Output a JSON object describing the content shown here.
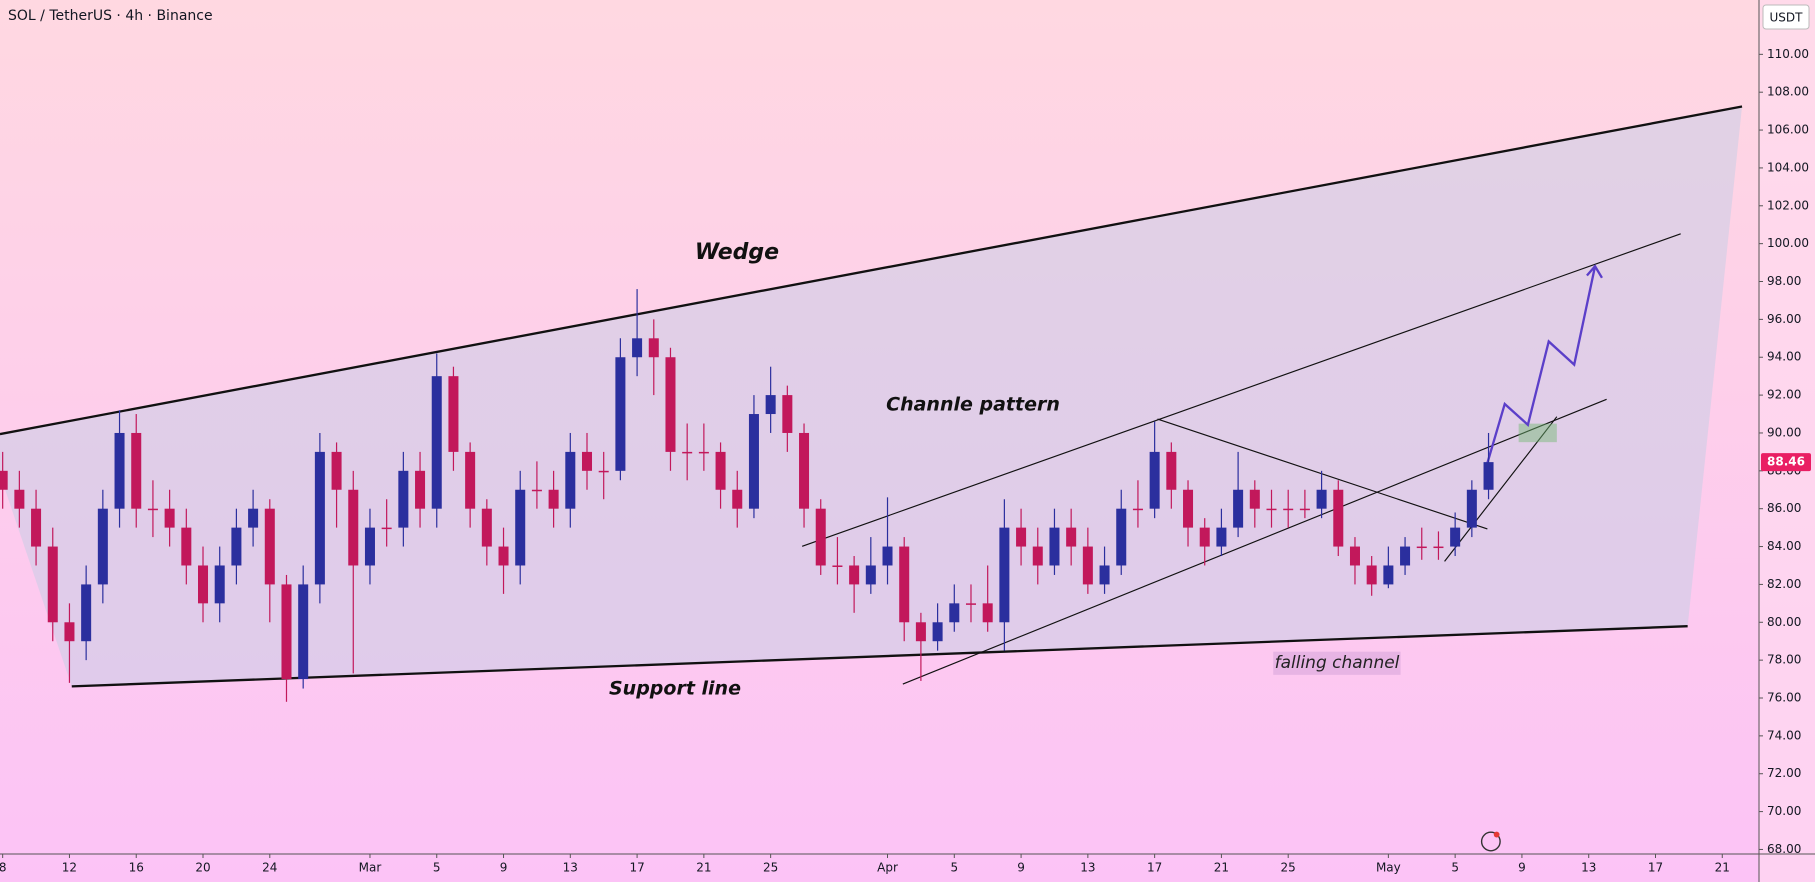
{
  "chart_data": {
    "type": "candlestick",
    "title": "SOL / TetherUS · 4h · Binance",
    "y_axis_unit": "USDT",
    "annotations": [
      "Wedge",
      "Channle pattern",
      "Support line",
      "falling channel"
    ],
    "up_color": "#2b2f9e",
    "down_color": "#c2185b",
    "last_price_color": "#e91e63",
    "xlim": [
      38.84,
      144.2
    ],
    "ylim": [
      67.76,
      112.87
    ],
    "xticks": [
      {
        "value": 39,
        "label": "8"
      },
      {
        "value": 43,
        "label": "12"
      },
      {
        "value": 47,
        "label": "16"
      },
      {
        "value": 51,
        "label": "20"
      },
      {
        "value": 55,
        "label": "24"
      },
      {
        "value": 61,
        "label": "Mar"
      },
      {
        "value": 65,
        "label": "5"
      },
      {
        "value": 69,
        "label": "9"
      },
      {
        "value": 73,
        "label": "13"
      },
      {
        "value": 77,
        "label": "17"
      },
      {
        "value": 81,
        "label": "21"
      },
      {
        "value": 85,
        "label": "25"
      },
      {
        "value": 92,
        "label": "Apr"
      },
      {
        "value": 96,
        "label": "5"
      },
      {
        "value": 100,
        "label": "9"
      },
      {
        "value": 104,
        "label": "13"
      },
      {
        "value": 108,
        "label": "17"
      },
      {
        "value": 112,
        "label": "21"
      },
      {
        "value": 116,
        "label": "25"
      },
      {
        "value": 122,
        "label": "May"
      },
      {
        "value": 126,
        "label": "5"
      },
      {
        "value": 130,
        "label": "9"
      },
      {
        "value": 134,
        "label": "13"
      },
      {
        "value": 138,
        "label": "17"
      },
      {
        "value": 142,
        "label": "21"
      }
    ],
    "yticks": [
      {
        "value": 68,
        "label": "68.00"
      },
      {
        "value": 70,
        "label": "70.00"
      },
      {
        "value": 72,
        "label": "72.00"
      },
      {
        "value": 74,
        "label": "74.00"
      },
      {
        "value": 76,
        "label": "76.00"
      },
      {
        "value": 78,
        "label": "78.00"
      },
      {
        "value": 80,
        "label": "80.00"
      },
      {
        "value": 82,
        "label": "82.00"
      },
      {
        "value": 84,
        "label": "84.00"
      },
      {
        "value": 86,
        "label": "86.00"
      },
      {
        "value": 88,
        "label": "88.00"
      },
      {
        "value": 90,
        "label": "90.00"
      },
      {
        "value": 92,
        "label": "92.00"
      },
      {
        "value": 94,
        "label": "94.00"
      },
      {
        "value": 96,
        "label": "96.00"
      },
      {
        "value": 98,
        "label": "98.00"
      },
      {
        "value": 100,
        "label": "100.00"
      },
      {
        "value": 102,
        "label": "102.00"
      },
      {
        "value": 104,
        "label": "104.00"
      },
      {
        "value": 106,
        "label": "106.00"
      },
      {
        "value": 108,
        "label": "108.00"
      },
      {
        "value": 110,
        "label": "110.00"
      }
    ],
    "x": [
      39,
      40,
      41,
      42,
      43,
      44,
      45,
      46,
      47,
      48,
      49,
      50,
      51,
      52,
      53,
      54,
      55,
      56,
      57,
      58,
      59,
      60,
      61,
      62,
      63,
      64,
      65,
      66,
      67,
      68,
      69,
      70,
      71,
      72,
      73,
      74,
      75,
      76,
      77,
      78,
      79,
      80,
      81,
      82,
      83,
      84,
      85,
      86,
      87,
      88,
      89,
      90,
      91,
      92,
      93,
      94,
      95,
      96,
      97,
      98,
      99,
      100,
      101,
      102,
      103,
      104,
      105,
      106,
      107,
      108,
      109,
      110,
      111,
      112,
      113,
      114,
      115,
      116,
      117,
      118,
      119,
      120,
      121,
      122,
      123,
      124,
      125,
      126,
      127,
      128
    ],
    "open": [
      88,
      87,
      86,
      84,
      80,
      79,
      82,
      86,
      90,
      86,
      86,
      85,
      83,
      81,
      83,
      85,
      86,
      82,
      77,
      82,
      89,
      87,
      83,
      85,
      85,
      88,
      86,
      93,
      89,
      86,
      84,
      83,
      87,
      87,
      86,
      89,
      88,
      88,
      94,
      95,
      94,
      89,
      89,
      89,
      87,
      86,
      91,
      92,
      90,
      86,
      83,
      83,
      82,
      83,
      84,
      80,
      79,
      80,
      81,
      81,
      80,
      85,
      84,
      83,
      85,
      84,
      82,
      83,
      86,
      86,
      89,
      87,
      85,
      84,
      85,
      87,
      86,
      86,
      86,
      86,
      87,
      84,
      83,
      82,
      83,
      84,
      84,
      84,
      85,
      87
    ],
    "high": [
      89,
      88,
      87,
      85,
      81,
      83,
      87,
      91.2,
      91,
      87.5,
      87,
      86,
      84,
      84,
      86,
      87,
      86.5,
      82.5,
      83,
      90,
      89.5,
      88,
      86,
      86.5,
      89,
      89,
      94.2,
      93.5,
      89.5,
      86.5,
      85,
      88,
      88.5,
      88,
      90,
      90,
      89,
      95,
      97.6,
      96,
      94.5,
      90.5,
      90.5,
      89.5,
      88,
      92,
      93.5,
      92.5,
      90.5,
      86.5,
      84.5,
      83.5,
      84.5,
      86.6,
      84.5,
      80.5,
      81,
      82,
      82,
      83,
      86.5,
      86,
      85,
      86,
      86,
      85,
      84,
      87,
      87.5,
      90.6,
      89.5,
      87.5,
      85.5,
      86,
      89,
      87.5,
      87,
      87,
      87,
      88,
      87.5,
      84.5,
      83.5,
      84,
      84.5,
      85,
      84.8,
      85.8,
      87.5,
      90
    ],
    "low": [
      86,
      85,
      83,
      79,
      76.8,
      78,
      81,
      85,
      85,
      84.5,
      84,
      82,
      80,
      80,
      82,
      84,
      80,
      75.8,
      76.5,
      81,
      85,
      77.3,
      82,
      84,
      84,
      85,
      85,
      88,
      85,
      83,
      81.5,
      82,
      86,
      85,
      85,
      87,
      86.5,
      87.5,
      93,
      92,
      88,
      87.5,
      88,
      86,
      85,
      85.5,
      90,
      89,
      85,
      82.5,
      82,
      80.5,
      81.5,
      82,
      79,
      76.9,
      78.5,
      79.5,
      80,
      79.5,
      78.5,
      83,
      82,
      82.5,
      83,
      81.5,
      81.5,
      82.5,
      85,
      85.5,
      86,
      84,
      83,
      83.5,
      84.5,
      85,
      85,
      85,
      85.5,
      85.5,
      83.5,
      82,
      81.4,
      81.8,
      82.5,
      83.3,
      83.3,
      83.5,
      84.5,
      86.5
    ],
    "close": [
      87,
      86,
      84,
      80,
      79,
      82,
      86,
      90,
      86,
      86,
      85,
      83,
      81,
      83,
      85,
      86,
      82,
      77,
      82,
      89,
      87,
      83,
      85,
      85,
      88,
      86,
      93,
      89,
      86,
      84,
      83,
      87,
      87,
      86,
      89,
      88,
      88,
      94,
      95,
      94,
      89,
      89,
      89,
      87,
      86,
      91,
      92,
      90,
      86,
      83,
      83,
      82,
      83,
      84,
      80,
      79,
      80,
      81,
      81,
      80,
      85,
      84,
      83,
      85,
      84,
      82,
      83,
      86,
      86,
      89,
      87,
      85,
      84,
      85,
      87,
      86,
      86,
      86,
      86,
      87,
      84,
      83,
      82,
      83,
      84,
      84,
      84,
      85,
      87,
      88.46
    ]
  }
}
